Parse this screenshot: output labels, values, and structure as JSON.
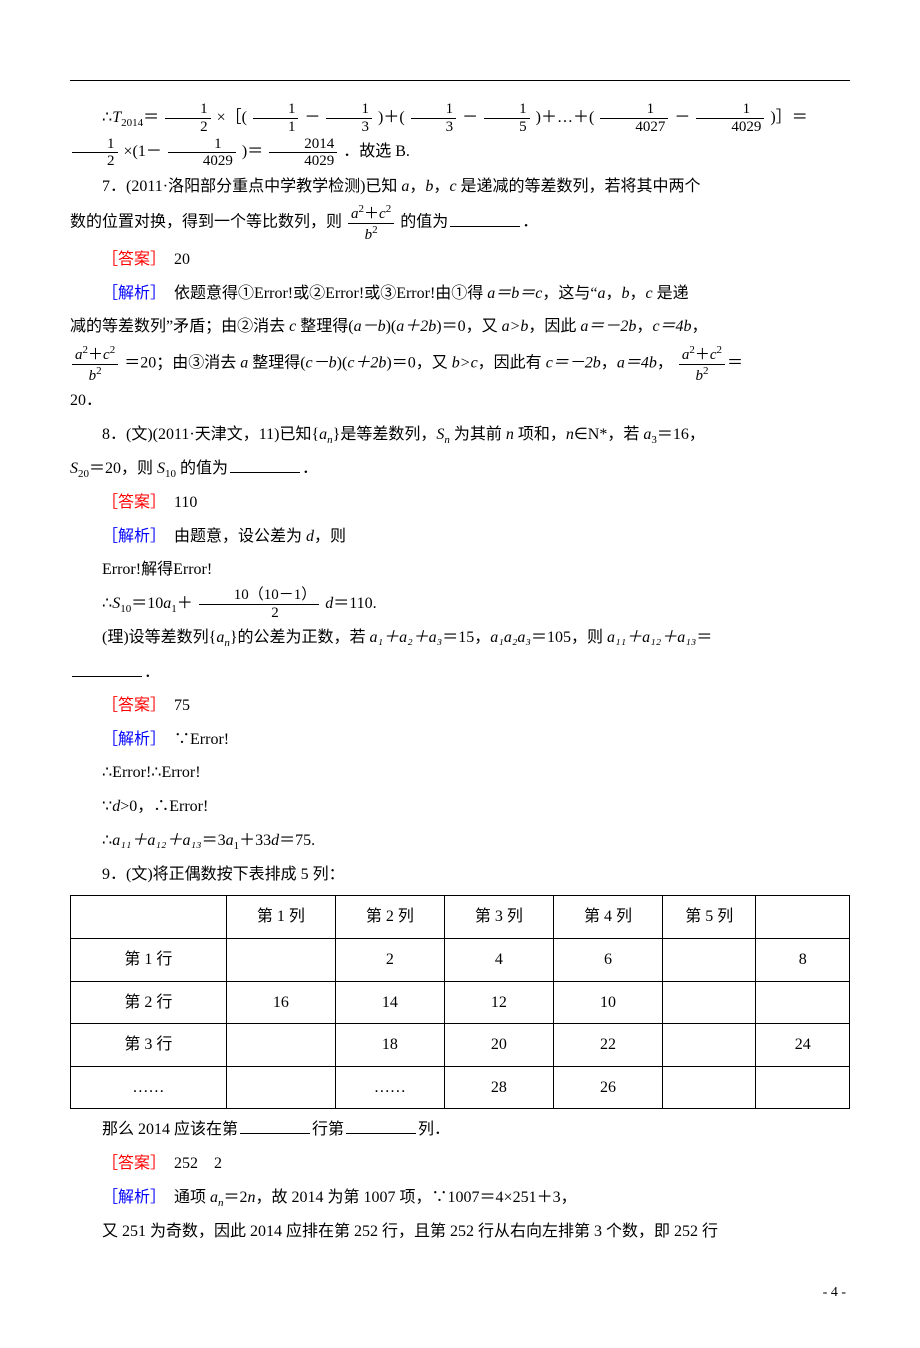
{
  "line1_pre": "∴",
  "line1_T": "T",
  "line1_Tsub": "2014",
  "line1_mid1": "＝",
  "line1_frac1_num": "1",
  "line1_frac1_den": "2",
  "line1_mid2": "×［(",
  "line1_f2n": "1",
  "line1_f2d": "1",
  "line1_minus": "－",
  "line1_f3n": "1",
  "line1_f3d": "3",
  "line1_mid3": ")＋(",
  "line1_f4n": "1",
  "line1_f4d": "3",
  "line1_f5n": "1",
  "line1_f5d": "5",
  "line1_mid4": ")＋…＋(",
  "line1_f6n": "1",
  "line1_f6d": "4027",
  "line1_f7n": "1",
  "line1_f7d": "4029",
  "line1_mid5": ")］＝",
  "line1_f8n": "1",
  "line1_f8d": "2",
  "line1_mid6": "×(1－",
  "line1_f9n": "1",
  "line1_f9d": "4029",
  "line1_mid7": ")＝",
  "line1_f10n": "2014",
  "line1_f10d": "4029",
  "line1_end": "．故选 B.",
  "q7_a": "7．(2011·洛阳部分重点中学教学检测)已知 ",
  "q7_b": "，",
  "q7_c": " 是递减的等差数列，若将其中两个",
  "q7_line2a": "数的位置对换，得到一个等比数列，则",
  "q7_fr_num_a": "a",
  "q7_fr_num_plus": "＋",
  "q7_fr_num_c": "c",
  "q7_fr_den": "b",
  "q7_line2b": "的值为",
  "q7_line2c": "．",
  "ans7_lbl": "［答案］",
  "ans7_val": "　20",
  "ex7_lbl": "［解析］",
  "ex7_a": "　依题意得①Error!或②Error!或③Error!由①得 ",
  "ex7_b": "，这与“",
  "ex7_c": " 是递",
  "ex7_eqabc": "a＝b＝c",
  "ex7_line2": "减的等差数列”矛盾；由②消去 ",
  "ex7_line2b": " 整理得(",
  "ex7_line2c": ")(",
  "ex7_line2d": ")＝0，又 ",
  "ex7_line2e": "，因此 ",
  "ex7_line2f": "，",
  "ex7_ab": "a－b",
  "ex7_a2b": "a＋2b",
  "ex7_agb": "a>b",
  "ex7_an2b": "a＝－2b",
  "ex7_c4b": "c＝4b",
  "ex7_line3a": "＝20；由③消去 ",
  "ex7_line3b": " 整理得(",
  "ex7_line3c": ")＝0，又 ",
  "ex7_line3d": "，因此有 ",
  "ex7_cb": "c－b",
  "ex7_c2b": "c＋2b",
  "ex7_bgc": "b>c",
  "ex7_cn2b": "c＝－2b",
  "ex7_a4b": "a＝4b",
  "ex7_line4": "20．",
  "ex7_eq": "＝",
  "q8_a": "8．(文)(2011·天津文，11)已知{",
  "q8_b": "}是等差数列，",
  "q8_c": " 为其前 ",
  "q8_d": " 项和，",
  "q8_e": "∈N*，若 ",
  "q8_f": "＝16，",
  "q8_an": "a",
  "q8_ansub": "n",
  "q8_S": "S",
  "q8_Ssub": "n",
  "q8_n": "n",
  "q8_a3": "a",
  "q8_a3sub": "3",
  "q8_line2a": "＝20，则 ",
  "q8_line2b": " 的值为",
  "q8_S20sub": "20",
  "q8_S10sub": "10",
  "q8_line2c": "．",
  "ans8_lbl": "［答案］",
  "ans8_val": "　110",
  "ex8_lbl": "［解析］",
  "ex8_a": "　由题意，设公差为 ",
  "ex8_b": "，则",
  "ex8_d": "d",
  "ex8_line2": "Error!解得Error!",
  "ex8_line3a": "∴",
  "ex8_line3b": "＝10",
  "ex8_line3c": "＋",
  "ex8_fr_num": "10（10－1）",
  "ex8_fr_den": "2",
  "ex8_line3d": "＝110.",
  "ex8_a1": "a",
  "ex8_a1sub": "1",
  "q8r_a": "(理)设等差数列{",
  "q8r_b": "}的公差为正数，若 ",
  "q8r_c": "＝15，",
  "q8r_d": "＝105，则 ",
  "q8r_e": "＝",
  "q8r_sum": "a₁＋a₂＋a₃",
  "q8r_prod": "a₁a₂a₃",
  "q8r_sum2": "a₁₁＋a₁₂＋a₁₃",
  "q8r_line2": "．",
  "ans8r_lbl": "［答案］",
  "ans8r_val": "　75",
  "ex8r_lbl": "［解析］",
  "ex8r_a": "　∵Error!",
  "ex8r_b": "∴Error!∴Error!",
  "ex8r_c": "∵",
  "ex8r_d": ">0，∴Error!",
  "ex8r_e": "∴",
  "ex8r_f": "＝3",
  "ex8r_g": "＋33",
  "ex8r_h": "＝75.",
  "q9_a": "9．(文)将正偶数按下表排成 5 列：",
  "table": {
    "columns": [
      "",
      "第 1 列",
      "第 2 列",
      "第 3 列",
      "第 4 列",
      "第 5 列",
      ""
    ],
    "rows": [
      [
        "第 1 行",
        "",
        "2",
        "4",
        "6",
        "8"
      ],
      [
        "第 2 行",
        "16",
        "14",
        "12",
        "10",
        ""
      ],
      [
        "第 3 行",
        "",
        "18",
        "20",
        "22",
        "24"
      ],
      [
        "……",
        "",
        "……",
        "28",
        "26",
        ""
      ]
    ],
    "col_widths": [
      "20%",
      "14%",
      "14%",
      "14%",
      "14%",
      "12%",
      "12%"
    ],
    "border_color": "#000000",
    "background": "#ffffff"
  },
  "q9_b": "那么 2014 应该在第",
  "q9_c": "行第",
  "q9_d": "列．",
  "ans9_lbl": "［答案］",
  "ans9_val": "　252　2",
  "ex9_lbl": "［解析］",
  "ex9_a": "　通项 ",
  "ex9_b": "＝2",
  "ex9_c": "，故 2014 为第 1007 项，∵1007＝4×251＋3，",
  "ex9_line2": "又 251 为奇数，因此 2014 应排在第 252 行，且第 252 行从右向左排第 3 个数，即 252 行",
  "page_num": "- 4 -"
}
